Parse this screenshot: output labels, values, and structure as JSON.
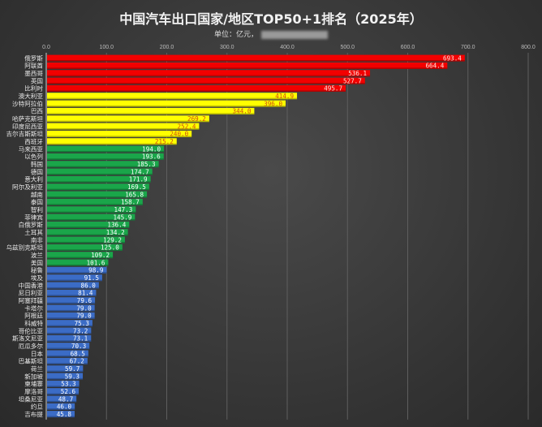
{
  "chart_data": {
    "type": "bar",
    "orientation": "horizontal",
    "title": "中国汽车出口国家/地区TOP50+1排名（2025年）",
    "subtitle": "单位：亿元，",
    "xlim": [
      0,
      800
    ],
    "xticks": [
      "0.0",
      "100.0",
      "200.0",
      "300.0",
      "400.0",
      "500.0",
      "600.0",
      "700.0",
      "800.0"
    ],
    "grid": true,
    "colors": {
      "red": "#f20000",
      "yellow": "#ffff00",
      "green": "#1aa64a",
      "blue": "#3b6cc6"
    },
    "categories": [
      "俄罗斯",
      "阿联酋",
      "墨西哥",
      "英国",
      "比利时",
      "澳大利亚",
      "沙特阿拉伯",
      "巴西",
      "哈萨克斯坦",
      "印度尼西亚",
      "吉尔吉斯斯坦",
      "西班牙",
      "马来西亚",
      "以色列",
      "韩国",
      "德国",
      "意大利",
      "阿尔及利亚",
      "越南",
      "泰国",
      "智利",
      "菲律宾",
      "白俄罗斯",
      "土耳其",
      "南非",
      "乌兹别克斯坦",
      "波兰",
      "美国",
      "秘鲁",
      "埃及",
      "中国香港",
      "尼日利亚",
      "阿塞拜疆",
      "卡塔尔",
      "阿根廷",
      "科威特",
      "哥伦比亚",
      "斯洛文尼亚",
      "厄瓜多尔",
      "日本",
      "巴基斯坦",
      "荷兰",
      "新加坡",
      "柬埔寨",
      "摩洛哥",
      "坦桑尼亚",
      "约旦",
      "吉布提"
    ],
    "values": [
      693.4,
      664.4,
      536.1,
      527.7,
      495.7,
      414.9,
      396.0,
      344.0,
      269.2,
      252.4,
      240.0,
      215.2,
      194.0,
      193.6,
      185.3,
      174.7,
      171.9,
      169.5,
      165.8,
      158.7,
      147.3,
      145.9,
      136.4,
      134.2,
      129.2,
      125.0,
      109.2,
      101.6,
      98.9,
      91.5,
      86.0,
      81.4,
      79.6,
      79.0,
      79.0,
      75.3,
      73.2,
      73.1,
      70.3,
      68.5,
      67.2,
      59.7,
      59.3,
      53.3,
      52.6,
      48.7,
      46.0,
      45.8
    ],
    "color_groups": [
      "red",
      "red",
      "red",
      "red",
      "red",
      "yellow",
      "yellow",
      "yellow",
      "yellow",
      "yellow",
      "yellow",
      "yellow",
      "green",
      "green",
      "green",
      "green",
      "green",
      "green",
      "green",
      "green",
      "green",
      "green",
      "green",
      "green",
      "green",
      "green",
      "green",
      "green",
      "blue",
      "blue",
      "blue",
      "blue",
      "blue",
      "blue",
      "blue",
      "blue",
      "blue",
      "blue",
      "blue",
      "blue",
      "blue",
      "blue",
      "blue",
      "blue",
      "blue",
      "blue",
      "blue",
      "blue"
    ]
  }
}
